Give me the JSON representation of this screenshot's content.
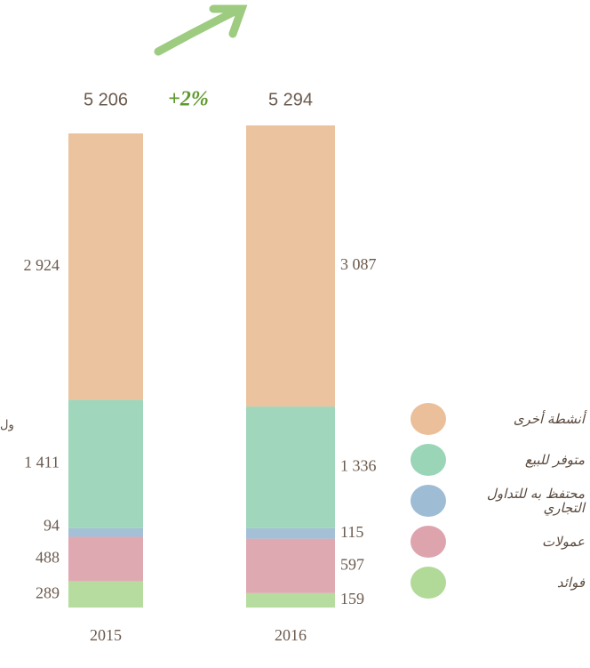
{
  "chart_data": {
    "type": "stacked-bar",
    "categories": [
      "2015",
      "2016"
    ],
    "totals": [
      5206,
      5294
    ],
    "total_labels": [
      "5 206",
      "5 294"
    ],
    "change": "+2%",
    "annotation": "ول",
    "series": [
      {
        "name": "فوائد",
        "color": "#a9d68e",
        "values": [
          289,
          159
        ],
        "value_labels": [
          "289",
          "159"
        ]
      },
      {
        "name": "عمولات",
        "color": "#d99aa5",
        "values": [
          488,
          597
        ],
        "value_labels": [
          "488",
          "597"
        ]
      },
      {
        "name": "محتفظ به للتداول التجاري",
        "color": "#93b5cf",
        "values": [
          94,
          115
        ],
        "value_labels": [
          "94",
          "115"
        ]
      },
      {
        "name": "متوفر للبيع",
        "color": "#8fd0b0",
        "values": [
          1411,
          1336
        ],
        "value_labels": [
          "1 411",
          "1 336"
        ]
      },
      {
        "name": "أنشطة أخرى",
        "color": "#e8b88e",
        "values": [
          2924,
          3087
        ],
        "value_labels": [
          "2 924",
          "3 087"
        ]
      }
    ]
  }
}
